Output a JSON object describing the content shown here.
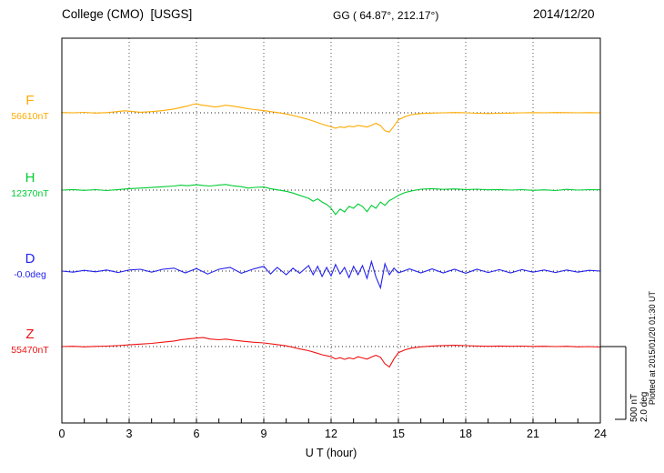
{
  "header": {
    "station": "College (CMO)  [USGS]",
    "coordinates": "GG ( 64.87°, 212.17°)",
    "date": "2014/12/20"
  },
  "xaxis": {
    "label": "U T (hour)",
    "ticks": [
      0,
      3,
      6,
      9,
      12,
      15,
      18,
      21,
      24
    ],
    "min": 0,
    "max": 24
  },
  "scale_bar": {
    "nt_label": "500 nT",
    "deg_label": "2.0 deg"
  },
  "plot_note": "Plotted at 2015/01/20 01:30 UT",
  "chart_data": {
    "type": "line",
    "title": "College (CMO) [USGS] magnetogram for 2014/12/20",
    "xlabel": "U T (hour)",
    "x_range": [
      0,
      24
    ],
    "grid": "dotted vertical gridlines every 3 hours; dotted horizontal baseline per trace",
    "legend_position": "left margin (component letter above baseline value)",
    "scale": {
      "nT_per_div": 500,
      "deg_per_div": 2.0
    },
    "series": [
      {
        "name": "F",
        "unit": "nT",
        "baseline_label": "56610nT",
        "baseline_value": 56610,
        "color": "#FFAA00",
        "points_hour_offset": [
          [
            0,
            2
          ],
          [
            0.5,
            0
          ],
          [
            1,
            3
          ],
          [
            1.5,
            -2
          ],
          [
            2,
            1
          ],
          [
            2.5,
            9
          ],
          [
            2.8,
            14
          ],
          [
            3.1,
            10
          ],
          [
            3.5,
            4
          ],
          [
            4,
            8
          ],
          [
            4.5,
            15
          ],
          [
            5,
            26
          ],
          [
            5.3,
            36
          ],
          [
            5.6,
            46
          ],
          [
            5.8,
            56
          ],
          [
            6,
            62
          ],
          [
            6.2,
            54
          ],
          [
            6.5,
            48
          ],
          [
            6.8,
            40
          ],
          [
            7,
            43
          ],
          [
            7.3,
            52
          ],
          [
            7.6,
            46
          ],
          [
            8,
            36
          ],
          [
            8.3,
            28
          ],
          [
            8.6,
            22
          ],
          [
            9,
            15
          ],
          [
            9.3,
            8
          ],
          [
            9.6,
            2
          ],
          [
            10,
            -8
          ],
          [
            10.3,
            -18
          ],
          [
            10.6,
            -30
          ],
          [
            11,
            -46
          ],
          [
            11.3,
            -62
          ],
          [
            11.6,
            -78
          ],
          [
            12,
            -96
          ],
          [
            12.2,
            -106
          ],
          [
            12.4,
            -96
          ],
          [
            12.6,
            -102
          ],
          [
            12.8,
            -92
          ],
          [
            13,
            -96
          ],
          [
            13.2,
            -86
          ],
          [
            13.4,
            -92
          ],
          [
            13.6,
            -98
          ],
          [
            13.8,
            -86
          ],
          [
            14,
            -72
          ],
          [
            14.2,
            -88
          ],
          [
            14.4,
            -124
          ],
          [
            14.6,
            -132
          ],
          [
            14.8,
            -92
          ],
          [
            15,
            -48
          ],
          [
            15.3,
            -26
          ],
          [
            15.6,
            -12
          ],
          [
            16,
            -5
          ],
          [
            16.5,
            -2
          ],
          [
            17,
            0
          ],
          [
            17.5,
            2
          ],
          [
            18,
            0
          ],
          [
            18.5,
            -3
          ],
          [
            19,
            -5
          ],
          [
            19.5,
            -3
          ],
          [
            20,
            -2
          ],
          [
            20.5,
            0
          ],
          [
            21,
            1
          ],
          [
            21.5,
            0
          ],
          [
            22,
            2
          ],
          [
            22.5,
            1
          ],
          [
            23,
            0
          ],
          [
            23.5,
            1
          ],
          [
            24,
            0
          ]
        ]
      },
      {
        "name": "H",
        "unit": "nT",
        "baseline_label": "12370nT",
        "baseline_value": 12370,
        "color": "#00CC33",
        "points_hour_offset": [
          [
            0,
            0
          ],
          [
            0.5,
            4
          ],
          [
            1,
            -2
          ],
          [
            1.5,
            3
          ],
          [
            2,
            -3
          ],
          [
            2.5,
            4
          ],
          [
            3,
            10
          ],
          [
            3.5,
            14
          ],
          [
            4,
            18
          ],
          [
            4.5,
            23
          ],
          [
            5,
            28
          ],
          [
            5.3,
            34
          ],
          [
            5.6,
            30
          ],
          [
            6,
            37
          ],
          [
            6.3,
            32
          ],
          [
            6.6,
            28
          ],
          [
            7,
            35
          ],
          [
            7.3,
            39
          ],
          [
            7.6,
            30
          ],
          [
            8,
            24
          ],
          [
            8.3,
            14
          ],
          [
            8.6,
            19
          ],
          [
            9,
            21
          ],
          [
            9.3,
            10
          ],
          [
            9.6,
            2
          ],
          [
            10,
            -8
          ],
          [
            10.3,
            -20
          ],
          [
            10.6,
            -36
          ],
          [
            11,
            -56
          ],
          [
            11.2,
            -76
          ],
          [
            11.4,
            -60
          ],
          [
            11.6,
            -82
          ],
          [
            11.8,
            -98
          ],
          [
            12,
            -125
          ],
          [
            12.2,
            -168
          ],
          [
            12.4,
            -130
          ],
          [
            12.6,
            -150
          ],
          [
            12.8,
            -112
          ],
          [
            13,
            -125
          ],
          [
            13.2,
            -95
          ],
          [
            13.4,
            -112
          ],
          [
            13.6,
            -148
          ],
          [
            13.8,
            -105
          ],
          [
            14,
            -125
          ],
          [
            14.2,
            -82
          ],
          [
            14.4,
            -105
          ],
          [
            14.6,
            -72
          ],
          [
            14.8,
            -55
          ],
          [
            15,
            -36
          ],
          [
            15.3,
            -16
          ],
          [
            15.6,
            -5
          ],
          [
            16,
            6
          ],
          [
            16.5,
            10
          ],
          [
            17,
            5
          ],
          [
            17.5,
            8
          ],
          [
            18,
            4
          ],
          [
            18.5,
            6
          ],
          [
            19,
            2
          ],
          [
            19.5,
            4
          ],
          [
            20,
            0
          ],
          [
            20.5,
            3
          ],
          [
            21,
            -2
          ],
          [
            21.5,
            2
          ],
          [
            22,
            -3
          ],
          [
            22.5,
            5
          ],
          [
            23,
            0
          ],
          [
            23.5,
            3
          ],
          [
            24,
            2
          ]
        ]
      },
      {
        "name": "D",
        "unit": "deg",
        "baseline_label": "-0.0deg",
        "baseline_value": -0.0,
        "color": "#2222EE",
        "points_hour_offset": [
          [
            0,
            0
          ],
          [
            0.5,
            -0.03
          ],
          [
            1,
            0.02
          ],
          [
            1.5,
            -0.02
          ],
          [
            2,
            0.03
          ],
          [
            2.5,
            -0.04
          ],
          [
            3,
            0.03
          ],
          [
            3.5,
            0.05
          ],
          [
            4,
            -0.03
          ],
          [
            4.5,
            0.05
          ],
          [
            5,
            0.08
          ],
          [
            5.5,
            -0.05
          ],
          [
            6,
            0.07
          ],
          [
            6.5,
            -0.08
          ],
          [
            7,
            0.05
          ],
          [
            7.5,
            0.1
          ],
          [
            8,
            -0.06
          ],
          [
            8.5,
            0.05
          ],
          [
            9,
            0.13
          ],
          [
            9.3,
            -0.08
          ],
          [
            9.6,
            0.1
          ],
          [
            10,
            -0.1
          ],
          [
            10.3,
            0.08
          ],
          [
            10.6,
            -0.06
          ],
          [
            11,
            0.15
          ],
          [
            11.2,
            -0.1
          ],
          [
            11.4,
            0.13
          ],
          [
            11.6,
            -0.15
          ],
          [
            11.8,
            0.1
          ],
          [
            12,
            -0.13
          ],
          [
            12.2,
            0.18
          ],
          [
            12.4,
            -0.08
          ],
          [
            12.6,
            0.1
          ],
          [
            12.8,
            -0.18
          ],
          [
            13,
            0.13
          ],
          [
            13.2,
            -0.1
          ],
          [
            13.4,
            0.15
          ],
          [
            13.6,
            -0.2
          ],
          [
            13.8,
            0.26
          ],
          [
            14,
            -0.16
          ],
          [
            14.2,
            -0.46
          ],
          [
            14.4,
            0.2
          ],
          [
            14.6,
            -0.1
          ],
          [
            14.8,
            0.08
          ],
          [
            15,
            -0.05
          ],
          [
            15.5,
            0.06
          ],
          [
            16,
            -0.05
          ],
          [
            16.5,
            0.06
          ],
          [
            17,
            -0.05
          ],
          [
            17.5,
            0.05
          ],
          [
            18,
            -0.06
          ],
          [
            18.5,
            0.05
          ],
          [
            19,
            -0.04
          ],
          [
            19.5,
            0.04
          ],
          [
            20,
            -0.05
          ],
          [
            20.5,
            0.04
          ],
          [
            21,
            -0.03
          ],
          [
            21.5,
            0.03
          ],
          [
            22,
            -0.04
          ],
          [
            22.5,
            0.03
          ],
          [
            23,
            -0.03
          ],
          [
            23.5,
            0.02
          ],
          [
            24,
            0
          ]
        ]
      },
      {
        "name": "Z",
        "unit": "nT",
        "baseline_label": "55470nT",
        "baseline_value": 55470,
        "color": "#EE1111",
        "points_hour_offset": [
          [
            0,
            0
          ],
          [
            0.5,
            2
          ],
          [
            1,
            -2
          ],
          [
            1.5,
            1
          ],
          [
            2,
            3
          ],
          [
            2.5,
            6
          ],
          [
            3,
            12
          ],
          [
            3.5,
            17
          ],
          [
            4,
            22
          ],
          [
            4.5,
            30
          ],
          [
            5,
            38
          ],
          [
            5.3,
            46
          ],
          [
            5.6,
            52
          ],
          [
            6,
            58
          ],
          [
            6.3,
            62
          ],
          [
            6.6,
            52
          ],
          [
            7,
            47
          ],
          [
            7.3,
            51
          ],
          [
            7.6,
            45
          ],
          [
            8,
            38
          ],
          [
            8.5,
            30
          ],
          [
            9,
            25
          ],
          [
            9.5,
            15
          ],
          [
            10,
            5
          ],
          [
            10.3,
            -5
          ],
          [
            10.6,
            -16
          ],
          [
            11,
            -28
          ],
          [
            11.3,
            -42
          ],
          [
            11.6,
            -56
          ],
          [
            12,
            -70
          ],
          [
            12.2,
            -85
          ],
          [
            12.4,
            -76
          ],
          [
            12.6,
            -88
          ],
          [
            12.8,
            -78
          ],
          [
            13,
            -85
          ],
          [
            13.2,
            -70
          ],
          [
            13.4,
            -78
          ],
          [
            13.6,
            -86
          ],
          [
            13.8,
            -72
          ],
          [
            14,
            -60
          ],
          [
            14.2,
            -74
          ],
          [
            14.4,
            -118
          ],
          [
            14.6,
            -140
          ],
          [
            14.8,
            -85
          ],
          [
            15,
            -42
          ],
          [
            15.3,
            -22
          ],
          [
            15.6,
            -10
          ],
          [
            16,
            -2
          ],
          [
            16.5,
            4
          ],
          [
            17,
            7
          ],
          [
            17.5,
            9
          ],
          [
            18,
            6
          ],
          [
            18.5,
            4
          ],
          [
            19,
            2
          ],
          [
            19.5,
            4
          ],
          [
            20,
            2
          ],
          [
            20.5,
            3
          ],
          [
            21,
            1
          ],
          [
            21.5,
            2
          ],
          [
            22,
            0
          ],
          [
            22.5,
            2
          ],
          [
            23,
            -2
          ],
          [
            23.5,
            0
          ],
          [
            24,
            -3
          ]
        ]
      }
    ]
  }
}
